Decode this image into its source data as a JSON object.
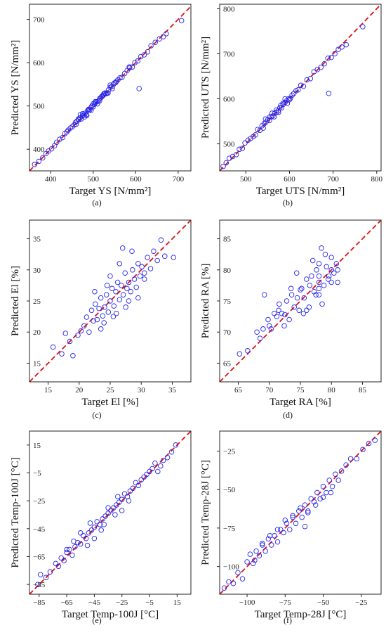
{
  "colors": {
    "points": "#2222ee",
    "diagonal": "#e01010",
    "axes": "#222222"
  },
  "chart_data": [
    {
      "type": "scatter",
      "caption": "(a)",
      "xlabel": "Target YS [N/mm²]",
      "ylabel": "Predicted YS [N/mm²]",
      "xlim": [
        350,
        730
      ],
      "ylim": [
        350,
        735
      ],
      "xticks": [
        400,
        500,
        600,
        700
      ],
      "yticks": [
        400,
        500,
        600,
        700
      ],
      "diagonal": true,
      "points": {
        "x": [
          362,
          372,
          381,
          389,
          395,
          402,
          409,
          414,
          421,
          428,
          433,
          438,
          441,
          446,
          451,
          455,
          458,
          462,
          466,
          469,
          472,
          475,
          478,
          481,
          484,
          487,
          489,
          492,
          495,
          497,
          500,
          503,
          506,
          509,
          512,
          515,
          518,
          521,
          524,
          528,
          532,
          536,
          540,
          544,
          548,
          553,
          558,
          563,
          568,
          574,
          580,
          586,
          592,
          598,
          605,
          612,
          620,
          628,
          636,
          646,
          656,
          665,
          672,
          708,
          460,
          470,
          480,
          490,
          500,
          510,
          520,
          530,
          540,
          550,
          465,
          475,
          485,
          495,
          505,
          515,
          525,
          535,
          545,
          555,
          608,
          585
        ],
        "y": [
          365,
          372,
          380,
          390,
          396,
          401,
          408,
          416,
          423,
          427,
          436,
          440,
          444,
          449,
          452,
          456,
          462,
          465,
          468,
          472,
          470,
          477,
          480,
          483,
          480,
          489,
          492,
          491,
          497,
          500,
          498,
          504,
          508,
          510,
          511,
          517,
          519,
          522,
          525,
          530,
          529,
          537,
          543,
          545,
          550,
          554,
          560,
          565,
          566,
          575,
          582,
          588,
          590,
          600,
          604,
          614,
          618,
          625,
          639,
          647,
          655,
          660,
          667,
          697,
          458,
          480,
          475,
          492,
          505,
          505,
          522,
          528,
          548,
          553,
          470,
          482,
          478,
          490,
          510,
          512,
          528,
          530,
          540,
          557,
          540,
          590
        ]
      }
    },
    {
      "type": "scatter",
      "caption": "(b)",
      "xlabel": "Target UTS [N/mm²]",
      "ylabel": "Predicted UTS [N/mm²]",
      "xlim": [
        440,
        810
      ],
      "ylim": [
        440,
        810
      ],
      "xticks": [
        500,
        600,
        700,
        800
      ],
      "yticks": [
        500,
        600,
        700,
        800
      ],
      "diagonal": true,
      "points": {
        "x": [
          448,
          455,
          462,
          470,
          478,
          485,
          492,
          498,
          505,
          511,
          517,
          522,
          527,
          532,
          537,
          542,
          546,
          550,
          554,
          558,
          562,
          566,
          570,
          574,
          578,
          582,
          586,
          590,
          594,
          598,
          602,
          606,
          610,
          615,
          620,
          626,
          632,
          640,
          648,
          656,
          664,
          672,
          680,
          688,
          696,
          704,
          712,
          720,
          730,
          768,
          545,
          555,
          565,
          575,
          585,
          595,
          540,
          560,
          580,
          600,
          690,
          570,
          590
        ],
        "y": [
          450,
          458,
          468,
          472,
          476,
          488,
          490,
          502,
          508,
          512,
          516,
          520,
          532,
          530,
          540,
          545,
          548,
          553,
          552,
          560,
          562,
          568,
          570,
          573,
          580,
          580,
          588,
          592,
          596,
          600,
          601,
          608,
          612,
          618,
          620,
          630,
          628,
          642,
          645,
          660,
          665,
          670,
          678,
          690,
          692,
          700,
          710,
          715,
          720,
          760,
          555,
          560,
          560,
          570,
          590,
          590,
          535,
          568,
          585,
          598,
          612,
          575,
          600
        ]
      }
    },
    {
      "type": "scatter",
      "caption": "(c)",
      "xlabel": "Target El [%]",
      "ylabel": "Predicted El [%]",
      "xlim": [
        12,
        38
      ],
      "ylim": [
        12,
        38
      ],
      "xticks": [
        15,
        20,
        25,
        30,
        35
      ],
      "yticks": [
        15,
        20,
        25,
        30,
        35
      ],
      "diagonal": true,
      "points": {
        "x": [
          15.8,
          17.2,
          17.8,
          18.5,
          19.0,
          19.8,
          20.3,
          20.8,
          21.2,
          21.6,
          22.0,
          22.3,
          22.6,
          22.9,
          23.2,
          23.5,
          23.8,
          24.1,
          24.4,
          24.7,
          25.0,
          25.3,
          25.6,
          25.9,
          26.2,
          26.5,
          26.8,
          27.1,
          27.4,
          27.7,
          28.0,
          28.3,
          28.6,
          28.9,
          29.2,
          29.5,
          29.8,
          30.1,
          30.5,
          31.0,
          31.5,
          32.0,
          32.6,
          33.2,
          33.8,
          35.2,
          22.5,
          23.5,
          24.5,
          25.5,
          26.5,
          27.5,
          28.5,
          29.5,
          30.5,
          24.0,
          26.0,
          28.0,
          25.0,
          27.0
        ],
        "y": [
          17.6,
          16.5,
          19.8,
          18.5,
          16.2,
          19.5,
          20.2,
          21.0,
          22.4,
          20.0,
          23.5,
          21.8,
          24.5,
          22.0,
          23.8,
          25.5,
          22.6,
          24.0,
          26.0,
          23.2,
          25.0,
          27.0,
          24.2,
          26.5,
          28.0,
          25.2,
          27.5,
          26.0,
          29.5,
          27.0,
          28.0,
          26.5,
          30.0,
          28.5,
          27.2,
          31.0,
          29.0,
          30.5,
          28.5,
          32.0,
          30.2,
          33.0,
          31.5,
          34.8,
          32.2,
          32.0,
          26.5,
          20.5,
          27.5,
          22.5,
          31.0,
          24.0,
          33.0,
          25.5,
          29.5,
          21.5,
          23.0,
          25.0,
          29.0,
          33.5
        ]
      }
    },
    {
      "type": "scatter",
      "caption": "(d)",
      "xlabel": "Target RA [%]",
      "ylabel": "Predicted RA [%]",
      "xlim": [
        62,
        88
      ],
      "ylim": [
        62,
        88
      ],
      "xticks": [
        65,
        70,
        75,
        80,
        85
      ],
      "yticks": [
        65,
        70,
        75,
        80,
        85
      ],
      "diagonal": true,
      "points": {
        "x": [
          65.2,
          66.5,
          68.0,
          68.5,
          69.2,
          69.8,
          70.3,
          70.8,
          71.2,
          71.6,
          72.0,
          72.4,
          72.8,
          73.2,
          73.6,
          74.0,
          74.4,
          74.8,
          75.2,
          75.6,
          76.0,
          76.4,
          76.8,
          77.2,
          77.6,
          78.0,
          78.0,
          78.0,
          78.0,
          78.0,
          78.4,
          78.8,
          79.2,
          79.6,
          80.0,
          80.0,
          80.0,
          80.4,
          80.8,
          75.5,
          76.5,
          77.5,
          78.5,
          79.5,
          74.5,
          73.5,
          72.5,
          71.5,
          77.0,
          79.0,
          76.0,
          75.0,
          69.0,
          70.0,
          81.0,
          81.0
        ],
        "y": [
          66.5,
          67.0,
          70.0,
          69.0,
          76.0,
          72.0,
          70.5,
          73.0,
          72.5,
          74.5,
          73.0,
          71.0,
          75.0,
          72.0,
          76.0,
          74.0,
          79.5,
          73.5,
          77.0,
          75.5,
          78.5,
          74.0,
          79.0,
          76.5,
          80.0,
          76.0,
          77.0,
          78.0,
          79.0,
          81.0,
          83.5,
          77.5,
          80.5,
          79.0,
          78.0,
          80.0,
          82.0,
          79.5,
          81.0,
          73.0,
          77.5,
          76.0,
          74.5,
          78.5,
          75.5,
          77.0,
          72.8,
          73.5,
          81.5,
          82.5,
          73.5,
          76.8,
          70.5,
          71.0,
          80.0,
          78.0
        ]
      }
    },
    {
      "type": "scatter",
      "caption": "(e)",
      "xlabel": "Target Temp-100J [°C]",
      "ylabel": "Predicted Temp-100J [°C]",
      "xlim": [
        -92,
        25
      ],
      "ylim": [
        -92,
        25
      ],
      "xticks": [
        -85,
        -65,
        -45,
        -25,
        -5,
        15
      ],
      "yticks": [
        -85,
        -65,
        -45,
        -25,
        -5,
        15
      ],
      "diagonal": true,
      "points": {
        "x": [
          -86,
          -84,
          -80,
          -77,
          -73,
          -71,
          -69,
          -67,
          -65,
          -63,
          -61,
          -59,
          -57,
          -55,
          -53,
          -51,
          -49,
          -47,
          -45,
          -43,
          -41,
          -39,
          -37,
          -35,
          -33,
          -31,
          -29,
          -27,
          -25,
          -23,
          -21,
          -19,
          -17,
          -15,
          -13,
          -11,
          -9,
          -7,
          -5,
          -3,
          -1,
          1,
          3,
          5,
          8,
          11,
          14,
          -60,
          -50,
          -40,
          -30,
          -20,
          -55,
          -45,
          -35,
          -25,
          -65,
          -48,
          -38,
          -28
        ],
        "y": [
          -85,
          -78,
          -80,
          -76,
          -70,
          -72,
          -66,
          -68,
          -62,
          -60,
          -64,
          -58,
          -55,
          -56,
          -50,
          -52,
          -48,
          -46,
          -44,
          -40,
          -42,
          -38,
          -36,
          -34,
          -32,
          -30,
          -28,
          -26,
          -24,
          -20,
          -22,
          -18,
          -16,
          -12,
          -14,
          -10,
          -8,
          -6,
          -4,
          -2,
          2,
          -4,
          0,
          4,
          6,
          10,
          15,
          -54,
          -57,
          -46,
          -35,
          -25,
          -48,
          -52,
          -30,
          -32,
          -60,
          -41,
          -42,
          -22
        ]
      }
    },
    {
      "type": "scatter",
      "caption": "(f)",
      "xlabel": "Target Temp-28J [°C]",
      "ylabel": "Predicted Temp-28J [°C]",
      "xlim": [
        -118,
        -12
      ],
      "ylim": [
        -118,
        -12
      ],
      "xticks": [
        -100,
        -75,
        -50,
        -25
      ],
      "yticks": [
        -100,
        -75,
        -50,
        -25
      ],
      "diagonal": true,
      "points": {
        "x": [
          -115,
          -112,
          -109,
          -106,
          -103,
          -100,
          -98,
          -96,
          -94,
          -92,
          -90,
          -88,
          -86,
          -84,
          -82,
          -80,
          -78,
          -76,
          -74,
          -72,
          -70,
          -68,
          -66,
          -64,
          -62,
          -60,
          -58,
          -56,
          -54,
          -52,
          -50,
          -48,
          -46,
          -44,
          -42,
          -40,
          -38,
          -35,
          -32,
          -28,
          -24,
          -20,
          -16,
          -85,
          -75,
          -65,
          -55,
          -90,
          -80,
          -70,
          -60,
          -50,
          -95,
          -62,
          -45
        ],
        "y": [
          -114,
          -110,
          -111,
          -104,
          -108,
          -97,
          -92,
          -98,
          -90,
          -93,
          -86,
          -90,
          -82,
          -86,
          -80,
          -84,
          -76,
          -78,
          -72,
          -76,
          -68,
          -72,
          -64,
          -68,
          -60,
          -64,
          -56,
          -58,
          -52,
          -56,
          -48,
          -52,
          -44,
          -48,
          -40,
          -44,
          -38,
          -34,
          -30,
          -30,
          -24,
          -20,
          -18,
          -80,
          -70,
          -62,
          -60,
          -85,
          -76,
          -67,
          -65,
          -55,
          -96,
          -74,
          -52
        ]
      }
    }
  ]
}
